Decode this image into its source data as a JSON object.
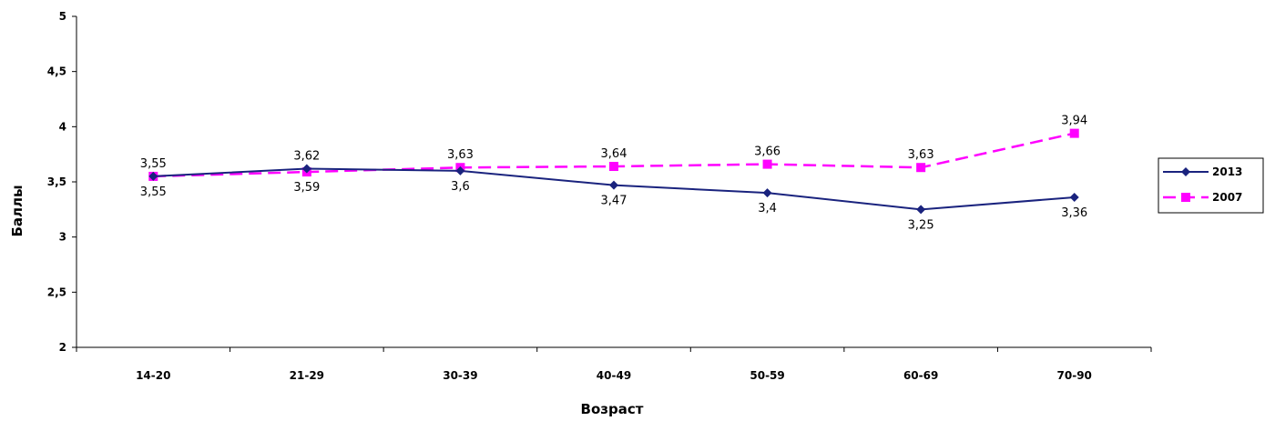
{
  "chart_data": {
    "type": "line",
    "title": "",
    "xlabel": "Возраст",
    "ylabel": "Баллы",
    "ylim": [
      2,
      5
    ],
    "ytick_step": 0.5,
    "ytick_labels": [
      "2",
      "2,5",
      "3",
      "3,5",
      "4",
      "4,5",
      "5"
    ],
    "categories": [
      "14-20",
      "21-29",
      "30-39",
      "40-49",
      "50-59",
      "60-69",
      "70-90"
    ],
    "grid": false,
    "legend_position": "right",
    "series": [
      {
        "name": "2013",
        "values": [
          3.55,
          3.62,
          3.6,
          3.47,
          3.4,
          3.25,
          3.36
        ],
        "labels": [
          "3,55",
          "3,62",
          "3,6",
          "3,47",
          "3,4",
          "3,25",
          "3,36"
        ],
        "label_placement": [
          "below",
          "above",
          "below",
          "below",
          "below",
          "below",
          "below"
        ],
        "color": "#1a237e",
        "line_style": "solid",
        "marker": "diamond"
      },
      {
        "name": "2007",
        "values": [
          3.55,
          3.59,
          3.63,
          3.64,
          3.66,
          3.63,
          3.94
        ],
        "labels": [
          "3,55",
          "3,59",
          "3,63",
          "3,64",
          "3,66",
          "3,63",
          "3,94"
        ],
        "label_placement": [
          "above",
          "below",
          "above",
          "above",
          "above",
          "above",
          "above"
        ],
        "color": "#ff00ff",
        "line_style": "dashed",
        "marker": "square"
      }
    ]
  }
}
